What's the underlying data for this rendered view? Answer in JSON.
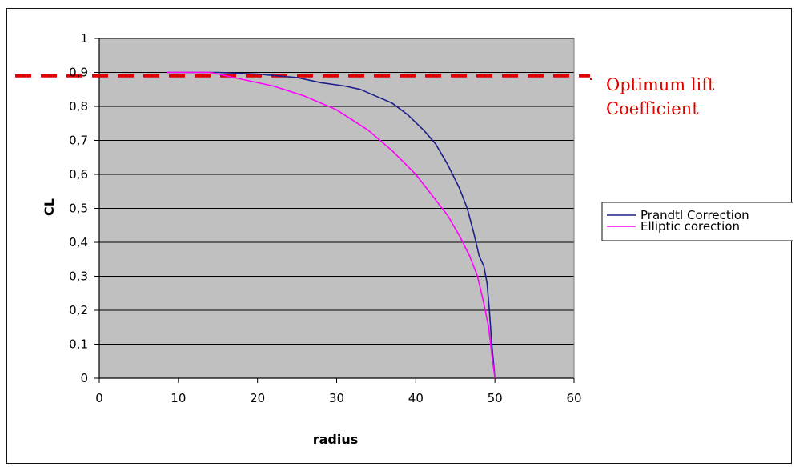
{
  "chart_data": {
    "type": "line",
    "title": "",
    "xlabel": "radius",
    "ylabel": "CL",
    "xlim": [
      0,
      60
    ],
    "ylim": [
      0,
      1
    ],
    "x_ticks": [
      "0",
      "10",
      "20",
      "30",
      "40",
      "50",
      "60"
    ],
    "y_ticks": [
      "0",
      "0,1",
      "0,2",
      "0,3",
      "0,4",
      "0,5",
      "0,6",
      "0,7",
      "0,8",
      "0,9",
      "1"
    ],
    "grid": "horizontal",
    "plot_background": "#c0c0c0",
    "legend_position": "right",
    "series": [
      {
        "name": "Prandtl Correction",
        "color": "#1f1f8a",
        "points": [
          [
            8.5,
            0.9
          ],
          [
            15,
            0.9
          ],
          [
            20,
            0.895
          ],
          [
            25,
            0.885
          ],
          [
            28,
            0.87
          ],
          [
            31,
            0.86
          ],
          [
            33,
            0.85
          ],
          [
            35,
            0.83
          ],
          [
            37,
            0.81
          ],
          [
            39,
            0.775
          ],
          [
            41,
            0.73
          ],
          [
            42.5,
            0.69
          ],
          [
            44,
            0.63
          ],
          [
            45.5,
            0.56
          ],
          [
            46.5,
            0.5
          ],
          [
            47.3,
            0.43
          ],
          [
            48,
            0.36
          ],
          [
            48.6,
            0.33
          ],
          [
            49,
            0.28
          ],
          [
            49.3,
            0.2
          ],
          [
            49.6,
            0.1
          ],
          [
            50,
            0
          ]
        ]
      },
      {
        "name": "Elliptic corection",
        "color": "#ff00ff",
        "points": [
          [
            8.5,
            0.9
          ],
          [
            14,
            0.9
          ],
          [
            18,
            0.88
          ],
          [
            22,
            0.86
          ],
          [
            26,
            0.83
          ],
          [
            30,
            0.79
          ],
          [
            34,
            0.73
          ],
          [
            37,
            0.67
          ],
          [
            40,
            0.6
          ],
          [
            42,
            0.54
          ],
          [
            44,
            0.48
          ],
          [
            45.5,
            0.42
          ],
          [
            46.8,
            0.36
          ],
          [
            47.8,
            0.3
          ],
          [
            48.6,
            0.22
          ],
          [
            49.2,
            0.15
          ],
          [
            49.6,
            0.07
          ],
          [
            50,
            0
          ]
        ]
      }
    ],
    "reference_line": {
      "y": 0.89,
      "color": "#e00000",
      "style": "dashed",
      "label_lines": [
        "Optimum lift",
        "Coefficient"
      ]
    }
  }
}
